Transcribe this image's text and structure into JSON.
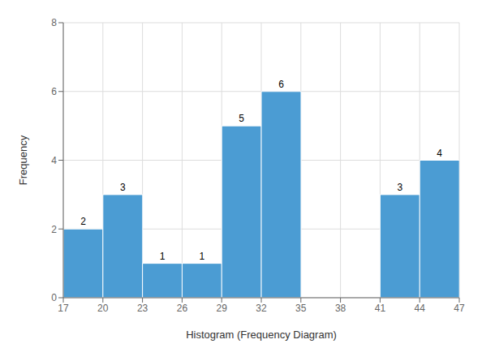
{
  "chart_data": {
    "type": "histogram",
    "bins": [
      17,
      20,
      23,
      26,
      29,
      32,
      35,
      38,
      41,
      44,
      47
    ],
    "values": [
      2,
      3,
      1,
      1,
      5,
      6,
      0,
      0,
      3,
      4
    ],
    "color": "#4B9CD3",
    "xlabel": "Histogram (Frequency Diagram)",
    "ylabel": "Frequency",
    "xlim": [
      17,
      47
    ],
    "xticks": [
      17,
      20,
      23,
      26,
      29,
      32,
      35,
      38,
      41,
      44,
      47
    ],
    "ylim": [
      0,
      8
    ],
    "yticks": [
      0,
      2,
      4,
      6,
      8
    ],
    "grid": true,
    "data_labels": true
  }
}
